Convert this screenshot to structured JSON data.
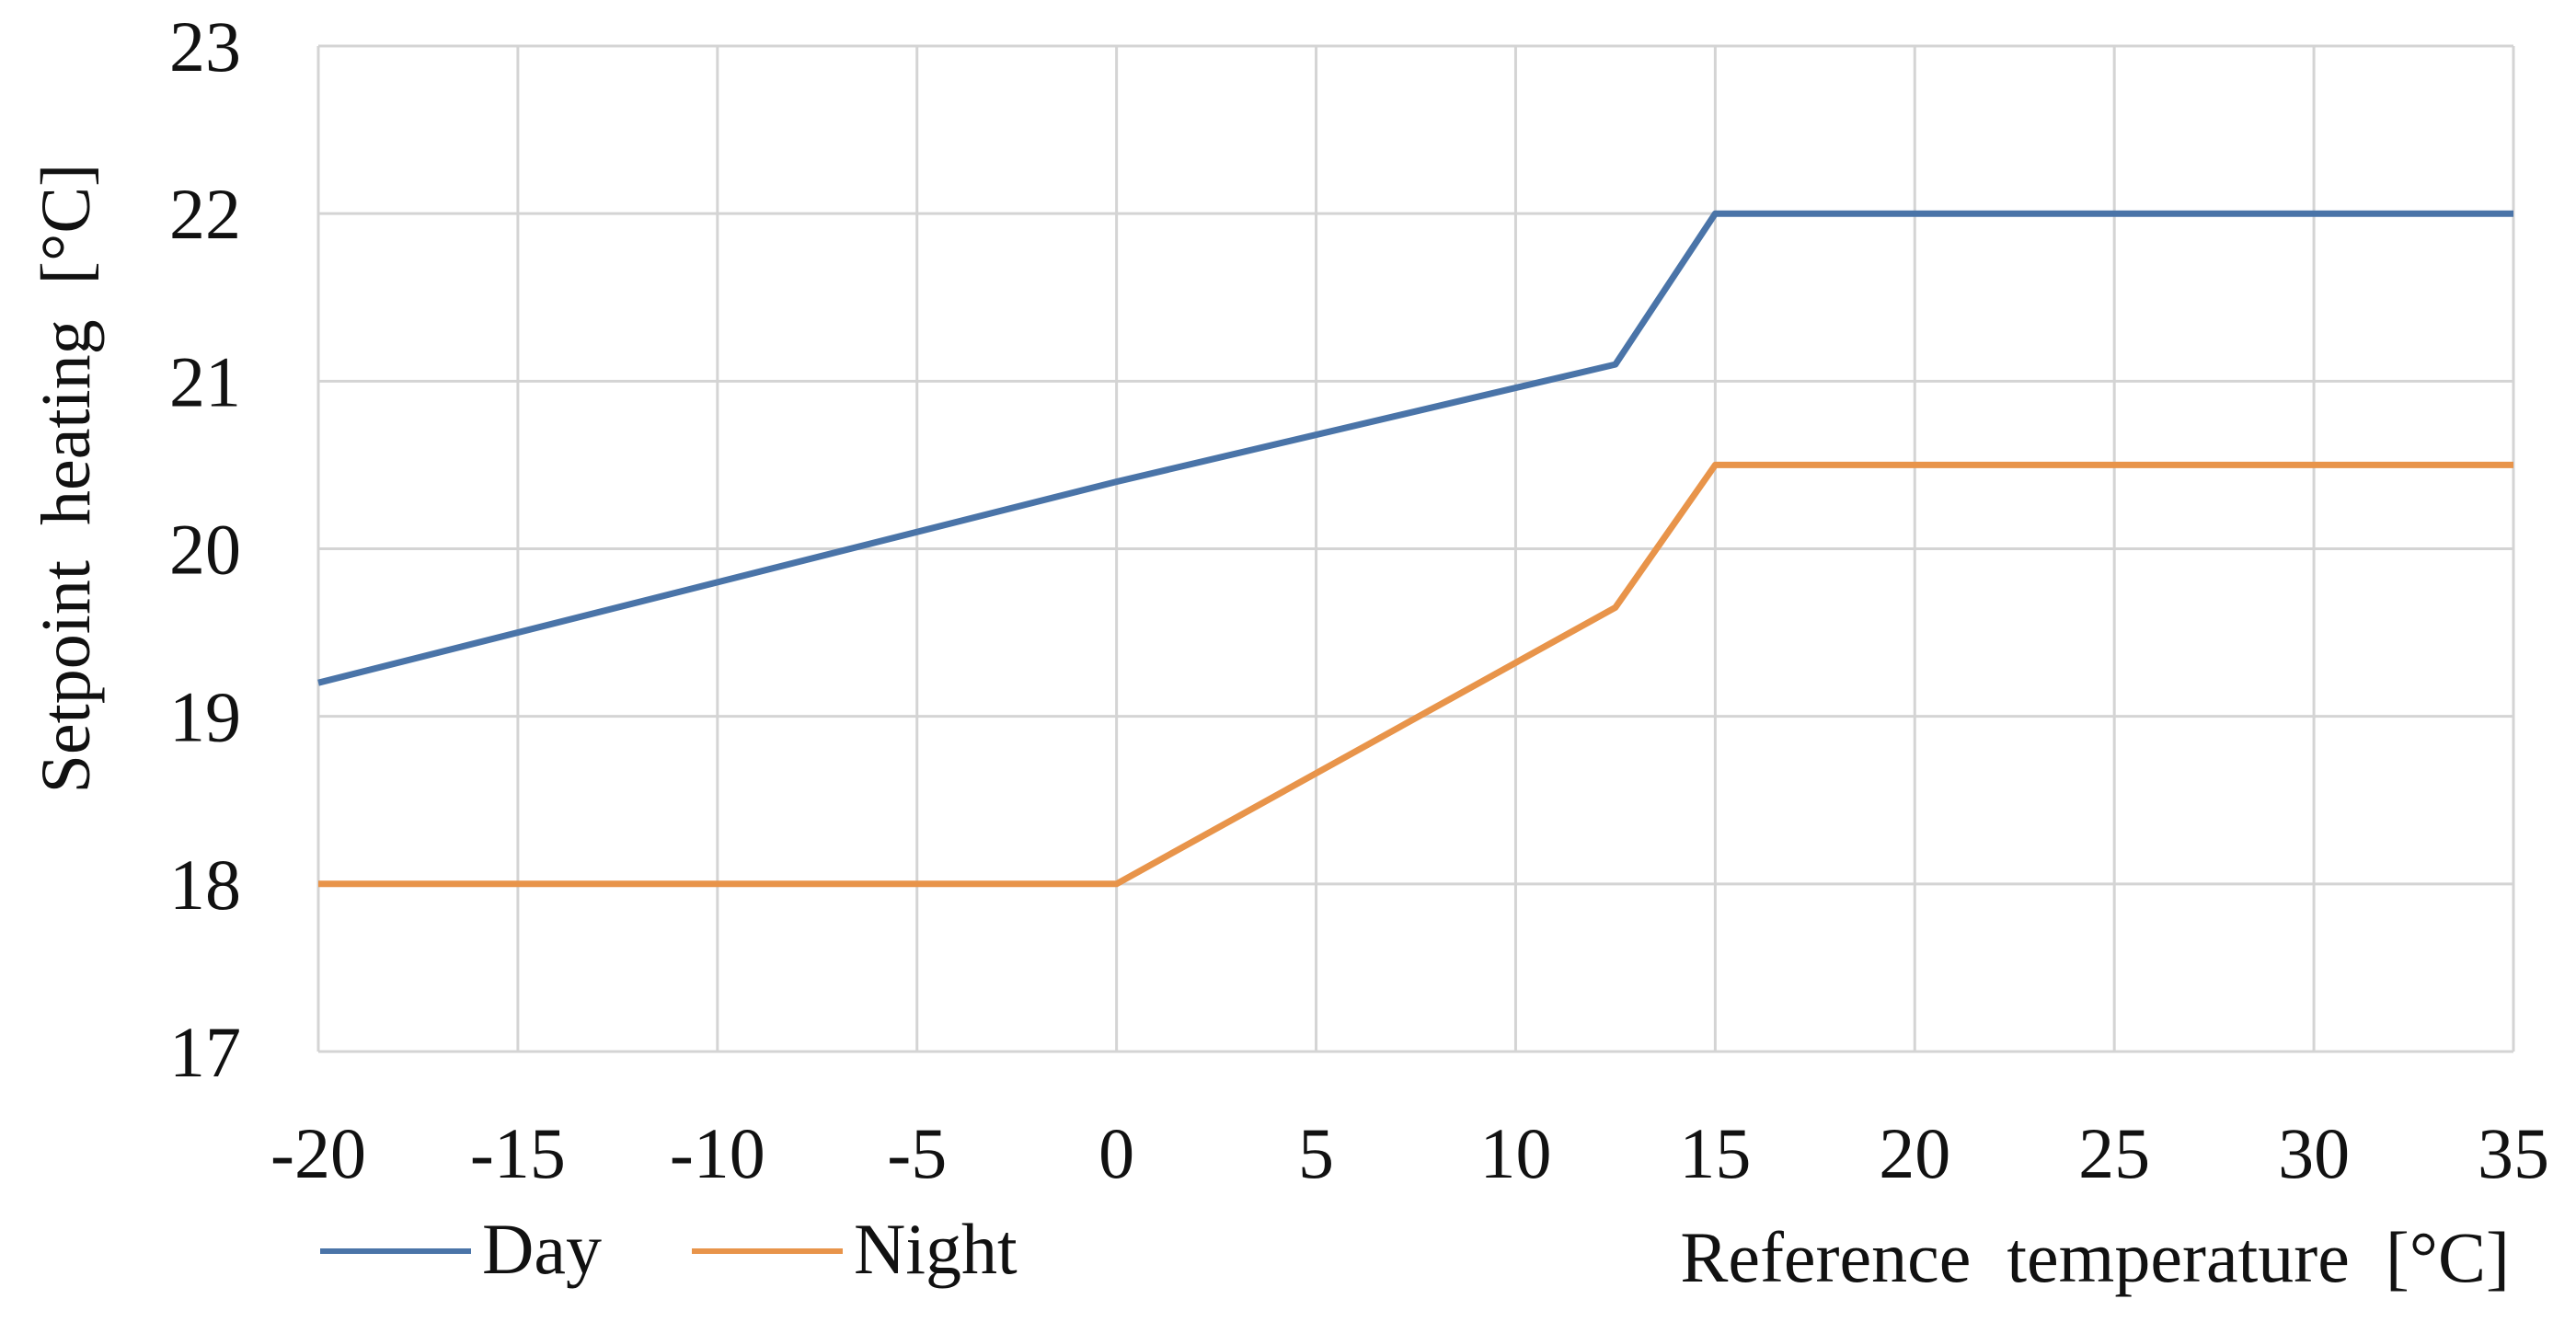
{
  "chart_data": {
    "type": "line",
    "title": "",
    "xlabel": "Reference  temperature  [°C]",
    "ylabel": "Setpoint  heating  [°C]",
    "xlim": [
      -20,
      35
    ],
    "ylim": [
      17,
      23
    ],
    "xticks": [
      -20,
      -15,
      -10,
      -5,
      0,
      5,
      10,
      15,
      20,
      25,
      30,
      35
    ],
    "yticks": [
      17,
      18,
      19,
      20,
      21,
      22,
      23
    ],
    "grid": true,
    "legend_position": "bottom-left",
    "series": [
      {
        "name": "Day",
        "color": "#4a74a8",
        "points": [
          [
            -20,
            19.2
          ],
          [
            0,
            20.4
          ],
          [
            12.5,
            21.1
          ],
          [
            15,
            22.0
          ],
          [
            35,
            22.0
          ]
        ]
      },
      {
        "name": "Night",
        "color": "#e8944a",
        "points": [
          [
            -20,
            18.0
          ],
          [
            0,
            18.0
          ],
          [
            12.5,
            19.65
          ],
          [
            15,
            20.5
          ],
          [
            35,
            20.5
          ]
        ]
      }
    ]
  }
}
